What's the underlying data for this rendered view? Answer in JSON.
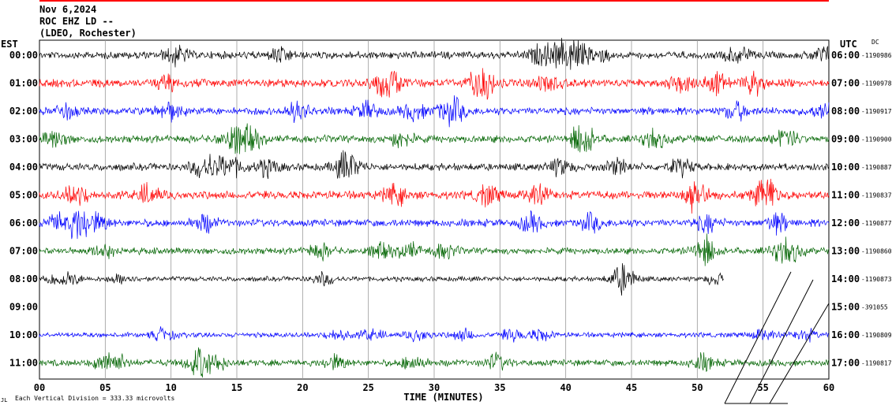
{
  "header": {
    "date": "Nov 6,2024",
    "station": "ROC EHZ LD --",
    "network": "(LDEO, Rochester)"
  },
  "footer": {
    "scale_note": "Each Vertical Division =  333.33 microvolts"
  },
  "chart_data": {
    "type": "line",
    "subtype": "helicorder",
    "xlabel": "TIME (MINUTES)",
    "x_ticks": [
      "00",
      "05",
      "10",
      "15",
      "20",
      "25",
      "30",
      "35",
      "40",
      "45",
      "50",
      "55",
      "60"
    ],
    "xlim": [
      0,
      60
    ],
    "left_axis_label": "EST",
    "right_axis_label": "UTC",
    "right_corner_label": "DC",
    "grid": true,
    "colors": [
      "#000000",
      "#ff0000",
      "#0000ff",
      "#006400"
    ],
    "rows": [
      {
        "est": "00:00",
        "utc": "06:00",
        "dc": "-1190986",
        "color": "#000000",
        "data_until_min": 60,
        "amplitude": 0.9
      },
      {
        "est": "01:00",
        "utc": "07:00",
        "dc": "-1190978",
        "color": "#ff0000",
        "data_until_min": 60,
        "amplitude": 1.0
      },
      {
        "est": "02:00",
        "utc": "08:00",
        "dc": "-1190917",
        "color": "#0000ff",
        "data_until_min": 60,
        "amplitude": 0.9
      },
      {
        "est": "03:00",
        "utc": "09:00",
        "dc": "-1190900",
        "color": "#006400",
        "data_until_min": 60,
        "amplitude": 0.9
      },
      {
        "est": "04:00",
        "utc": "10:00",
        "dc": "-1190887",
        "color": "#000000",
        "data_until_min": 60,
        "amplitude": 0.9
      },
      {
        "est": "05:00",
        "utc": "11:00",
        "dc": "-1190837",
        "color": "#ff0000",
        "data_until_min": 60,
        "amplitude": 1.0
      },
      {
        "est": "06:00",
        "utc": "12:00",
        "dc": "-1190877",
        "color": "#0000ff",
        "data_until_min": 60,
        "amplitude": 0.9
      },
      {
        "est": "07:00",
        "utc": "13:00",
        "dc": "-1190860",
        "color": "#006400",
        "data_until_min": 60,
        "amplitude": 0.8
      },
      {
        "est": "08:00",
        "utc": "14:00",
        "dc": "-1190873",
        "color": "#000000",
        "data_until_min": 52,
        "amplitude": 0.6
      },
      {
        "est": "09:00",
        "utc": "15:00",
        "dc": "-391055",
        "color": "#ff0000",
        "data_until_min": 0,
        "amplitude": 0.0
      },
      {
        "est": "10:00",
        "utc": "16:00",
        "dc": "-1190809",
        "color": "#0000ff",
        "data_until_min": 60,
        "amplitude": 0.6
      },
      {
        "est": "11:00",
        "utc": "17:00",
        "dc": "-1190817",
        "color": "#006400",
        "data_until_min": 60,
        "amplitude": 0.8
      }
    ]
  }
}
